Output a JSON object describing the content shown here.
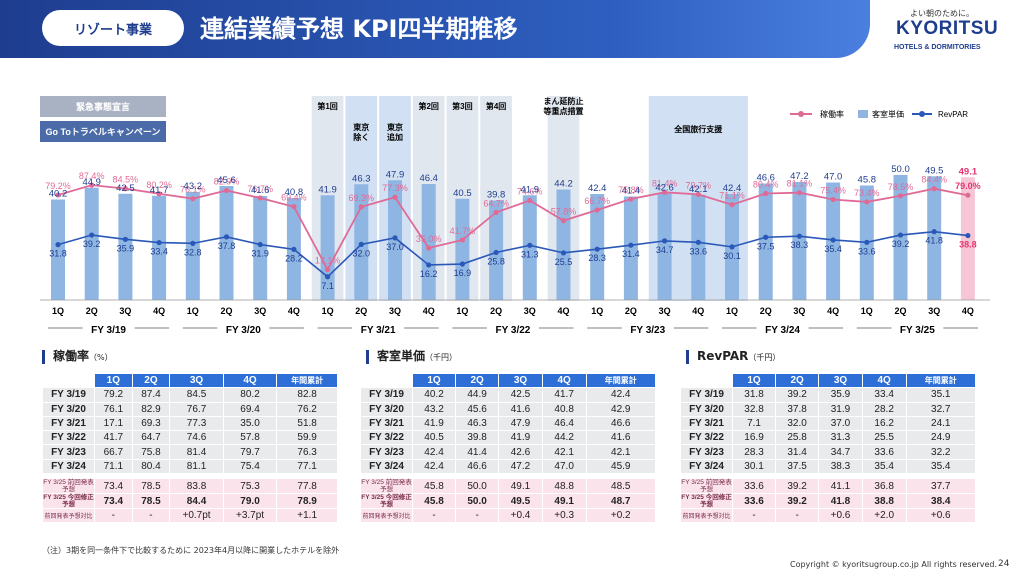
{
  "header": {
    "segment": "リゾート事業",
    "title": "連結業績予想 KPI四半期推移"
  },
  "logo": {
    "tagline": "よい朝のために。",
    "name": "KYORITSU",
    "sub": "HOTELS & DORMITORIES"
  },
  "colors": {
    "occupancy": "#e06a96",
    "adr": "#8fb6e3",
    "revpar": "#2a58b8",
    "highlight_bar": "#f6c6d6",
    "highlight_text": "#e6336f",
    "band": "#dce3ec",
    "band_blue": "#c9daf0",
    "header": "#2d6fd6"
  },
  "chart_data": {
    "type": "bar",
    "legend": [
      "稼働率",
      "客室単価",
      "RevPAR"
    ],
    "legend_position": "top-right",
    "quarters": [
      "1Q",
      "2Q",
      "3Q",
      "4Q",
      "1Q",
      "2Q",
      "3Q",
      "4Q",
      "1Q",
      "2Q",
      "3Q",
      "4Q",
      "1Q",
      "2Q",
      "3Q",
      "4Q",
      "1Q",
      "2Q",
      "3Q",
      "4Q",
      "1Q",
      "2Q",
      "3Q",
      "4Q",
      "1Q",
      "2Q",
      "3Q",
      "4Q"
    ],
    "fiscal_years": [
      "FY 3/19",
      "FY 3/20",
      "FY 3/21",
      "FY 3/22",
      "FY 3/23",
      "FY 3/24",
      "FY 3/25"
    ],
    "occupancy": [
      "79.2%",
      "87.4%",
      "84.5%",
      "80.2%",
      "76.1%",
      "82.9%",
      "76.7%",
      "69.4%",
      "17.1%",
      "69.3%",
      "77.3%",
      "35.0%",
      "41.7%",
      "64.7%",
      "74.6%",
      "57.8%",
      "66.7%",
      "75.8%",
      "81.4%",
      "79.7%",
      "71.1%",
      "80.4%",
      "81.1%",
      "75.4%",
      "73.4%",
      "78.5%",
      "84.4%",
      "79.0%"
    ],
    "adr": [
      "40.2",
      "44.9",
      "42.5",
      "41.7",
      "43.2",
      "45.6",
      "41.6",
      "40.8",
      "41.9",
      "46.3",
      "47.9",
      "46.4",
      "40.5",
      "39.8",
      "41.9",
      "44.2",
      "42.4",
      "41.4",
      "42.6",
      "42.1",
      "42.4",
      "46.6",
      "47.2",
      "47.0",
      "45.8",
      "50.0",
      "49.5",
      "49.1"
    ],
    "revpar": [
      "31.8",
      "39.2",
      "35.9",
      "33.4",
      "32.8",
      "37.8",
      "31.9",
      "28.2",
      "7.1",
      "32.0",
      "37.0",
      "16.2",
      "16.9",
      "25.8",
      "31.3",
      "25.5",
      "28.3",
      "31.4",
      "34.7",
      "33.6",
      "30.1",
      "37.5",
      "38.3",
      "35.4",
      "33.6",
      "39.2",
      "41.8",
      "38.8"
    ],
    "events": {
      "emergency": "緊急事態宣言",
      "goto": "Go Toトラベルキャンペーン",
      "first": "第1回",
      "second": "第2回",
      "third": "第3回",
      "fourth": "第4回",
      "tokyo_ex": "東京除く",
      "tokyo_add": "東京追加",
      "manen": "まん延防止等重点措置",
      "national": "全国旅行支援"
    }
  },
  "tables": {
    "occupancy": {
      "title": "稼働率",
      "unit": "（%）"
    },
    "adr": {
      "title": "客室単価",
      "unit": "（千円）"
    },
    "revpar": {
      "title": "RevPAR",
      "unit": "（千円）"
    },
    "headers": [
      "1Q",
      "2Q",
      "3Q",
      "4Q",
      "年間累計"
    ],
    "fy_labels": [
      "FY 3/19",
      "FY 3/20",
      "FY 3/21",
      "FY 3/22",
      "FY 3/23",
      "FY 3/24"
    ],
    "prev_label": "FY 3/25 前回発表予想",
    "revised_label": "FY 3/25 今回修正予想",
    "diff_label": "前回発表予想対比",
    "occ_rows": [
      [
        "79.2",
        "87.4",
        "84.5",
        "80.2",
        "82.8"
      ],
      [
        "76.1",
        "82.9",
        "76.7",
        "69.4",
        "76.2"
      ],
      [
        "17.1",
        "69.3",
        "77.3",
        "35.0",
        "51.8"
      ],
      [
        "41.7",
        "64.7",
        "74.6",
        "57.8",
        "59.9"
      ],
      [
        "66.7",
        "75.8",
        "81.4",
        "79.7",
        "76.3"
      ],
      [
        "71.1",
        "80.4",
        "81.1",
        "75.4",
        "77.1"
      ]
    ],
    "occ_prev": [
      "73.4",
      "78.5",
      "83.8",
      "75.3",
      "77.8"
    ],
    "occ_rev": [
      "73.4",
      "78.5",
      "84.4",
      "79.0",
      "78.9"
    ],
    "occ_diff": [
      "-",
      "-",
      "+0.7pt",
      "+3.7pt",
      "+1.1"
    ],
    "adr_rows": [
      [
        "40.2",
        "44.9",
        "42.5",
        "41.7",
        "42.4"
      ],
      [
        "43.2",
        "45.6",
        "41.6",
        "40.8",
        "42.9"
      ],
      [
        "41.9",
        "46.3",
        "47.9",
        "46.4",
        "46.6"
      ],
      [
        "40.5",
        "39.8",
        "41.9",
        "44.2",
        "41.6"
      ],
      [
        "42.4",
        "41.4",
        "42.6",
        "42.1",
        "42.1"
      ],
      [
        "42.4",
        "46.6",
        "47.2",
        "47.0",
        "45.9"
      ]
    ],
    "adr_prev": [
      "45.8",
      "50.0",
      "49.1",
      "48.8",
      "48.5"
    ],
    "adr_rev": [
      "45.8",
      "50.0",
      "49.5",
      "49.1",
      "48.7"
    ],
    "adr_diff": [
      "-",
      "-",
      "+0.4",
      "+0.3",
      "+0.2"
    ],
    "rev_rows": [
      [
        "31.8",
        "39.2",
        "35.9",
        "33.4",
        "35.1"
      ],
      [
        "32.8",
        "37.8",
        "31.9",
        "28.2",
        "32.7"
      ],
      [
        "7.1",
        "32.0",
        "37.0",
        "16.2",
        "24.1"
      ],
      [
        "16.9",
        "25.8",
        "31.3",
        "25.5",
        "24.9"
      ],
      [
        "28.3",
        "31.4",
        "34.7",
        "33.6",
        "32.2"
      ],
      [
        "30.1",
        "37.5",
        "38.3",
        "35.4",
        "35.4"
      ]
    ],
    "rev_prev": [
      "33.6",
      "39.2",
      "41.1",
      "36.8",
      "37.7"
    ],
    "rev_rev": [
      "33.6",
      "39.2",
      "41.8",
      "38.8",
      "38.4"
    ],
    "rev_diff": [
      "-",
      "-",
      "+0.6",
      "+2.0",
      "+0.6"
    ]
  },
  "footnote": "（注）3期を同一条件下で比較するために 2023年4月以降に開業したホテルを除外",
  "copyright": "Copyright © kyoritsugroup.co.jp All rights reserved.",
  "page": "24"
}
